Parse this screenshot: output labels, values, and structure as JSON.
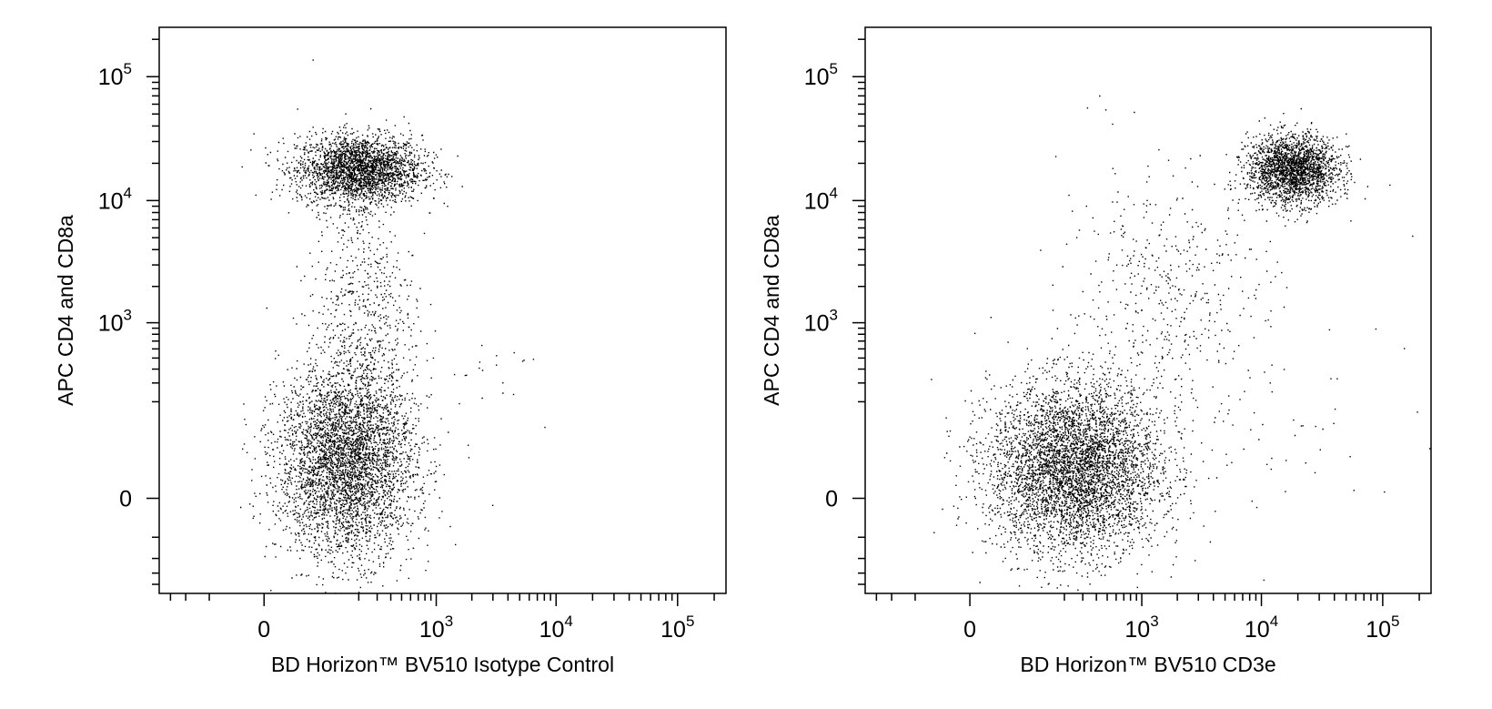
{
  "chart_data": [
    {
      "type": "scatter",
      "xlabel": "BD Horizon™ BV510 Isotype Control",
      "ylabel": "APC CD4 and CD8a",
      "x_scale": "biexponential",
      "y_scale": "biexponential",
      "xlim": [
        -400,
        250000
      ],
      "ylim": [
        -250,
        250000
      ],
      "x_tick_labels": [
        {
          "base": "0",
          "exp": ""
        },
        {
          "base": "10",
          "exp": "3"
        },
        {
          "base": "10",
          "exp": "4"
        },
        {
          "base": "10",
          "exp": "5"
        }
      ],
      "y_tick_labels": [
        {
          "base": "0",
          "exp": ""
        },
        {
          "base": "10",
          "exp": "3"
        },
        {
          "base": "10",
          "exp": "4"
        },
        {
          "base": "10",
          "exp": "5"
        }
      ],
      "populations": [
        {
          "x_center": 200,
          "y_center": 18000,
          "events": 2600
        },
        {
          "x_center": 150,
          "y_center": 40,
          "events": 4200
        },
        {
          "x_center": 220,
          "y_center": 1500,
          "events": 600
        },
        {
          "x_center": 3000,
          "y_center": 400,
          "events": 18
        }
      ]
    },
    {
      "type": "scatter",
      "xlabel": "BD Horizon™ BV510 CD3e",
      "ylabel": "APC CD4 and CD8a",
      "x_scale": "biexponential",
      "y_scale": "biexponential",
      "xlim": [
        -400,
        250000
      ],
      "ylim": [
        -250,
        250000
      ],
      "x_tick_labels": [
        {
          "base": "0",
          "exp": ""
        },
        {
          "base": "10",
          "exp": "3"
        },
        {
          "base": "10",
          "exp": "4"
        },
        {
          "base": "10",
          "exp": "5"
        }
      ],
      "y_tick_labels": [
        {
          "base": "0",
          "exp": ""
        },
        {
          "base": "10",
          "exp": "3"
        },
        {
          "base": "10",
          "exp": "4"
        },
        {
          "base": "10",
          "exp": "5"
        }
      ],
      "populations": [
        {
          "x_center": 18000,
          "y_center": 18000,
          "events": 2200
        },
        {
          "x_center": 250,
          "y_center": 30,
          "events": 4800
        },
        {
          "x_center": 1500,
          "y_center": 1500,
          "events": 500
        },
        {
          "x_center": 20000,
          "y_center": 300,
          "events": 60
        }
      ]
    }
  ]
}
